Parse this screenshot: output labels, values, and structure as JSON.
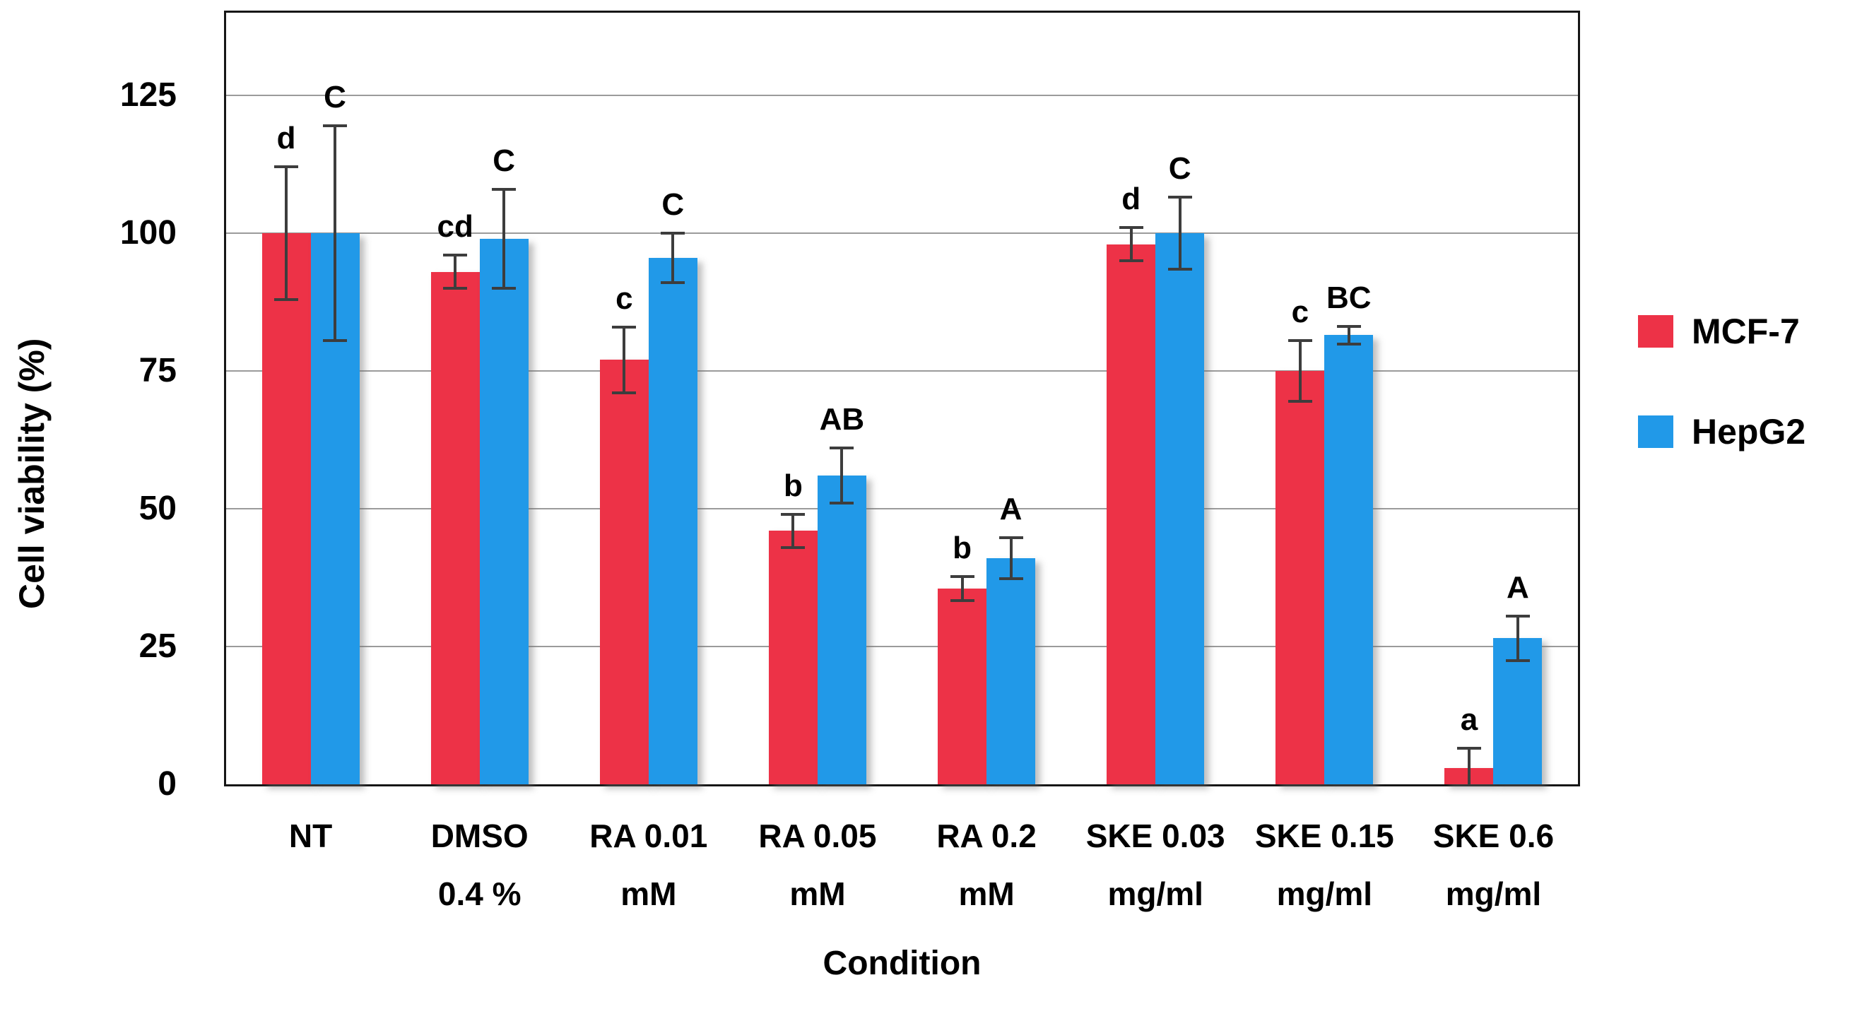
{
  "chart_data": {
    "type": "bar",
    "title": "",
    "xlabel": "Condition",
    "ylabel": "Cell viability (%)",
    "ylim": [
      0,
      140
    ],
    "yticks": [
      0,
      25,
      50,
      75,
      100,
      125
    ],
    "grid": true,
    "legend_position": "right",
    "categories": [
      [
        "NT",
        ""
      ],
      [
        "DMSO",
        "0.4 %"
      ],
      [
        "RA 0.01",
        "mM"
      ],
      [
        "RA 0.05",
        "mM"
      ],
      [
        "RA 0.2",
        "mM"
      ],
      [
        "SKE 0.03",
        "mg/ml"
      ],
      [
        "SKE 0.15",
        "mg/ml"
      ],
      [
        "SKE 0.6",
        "mg/ml"
      ]
    ],
    "series": [
      {
        "name": "MCF-7",
        "color": "#ED3247",
        "values": [
          100,
          93,
          77,
          46,
          35.5,
          98,
          75,
          3
        ],
        "errors": [
          12,
          3,
          6,
          3,
          2.2,
          3,
          5.5,
          3.5
        ],
        "letters": [
          "d",
          "cd",
          "c",
          "b",
          "b",
          "d",
          "c",
          "a"
        ]
      },
      {
        "name": "HepG2",
        "color": "#2199E8",
        "values": [
          100,
          99,
          95.5,
          56,
          41,
          100,
          81.5,
          26.5
        ],
        "errors": [
          19.5,
          9,
          4.5,
          5,
          3.7,
          6.5,
          1.6,
          4
        ],
        "letters": [
          "C",
          "C",
          "C",
          "AB",
          "A",
          "C",
          "BC",
          "A"
        ]
      }
    ],
    "colors": {
      "gridline": "#9b9b9b",
      "error_bar": "#3d3d3d",
      "frame": "#161616"
    }
  }
}
